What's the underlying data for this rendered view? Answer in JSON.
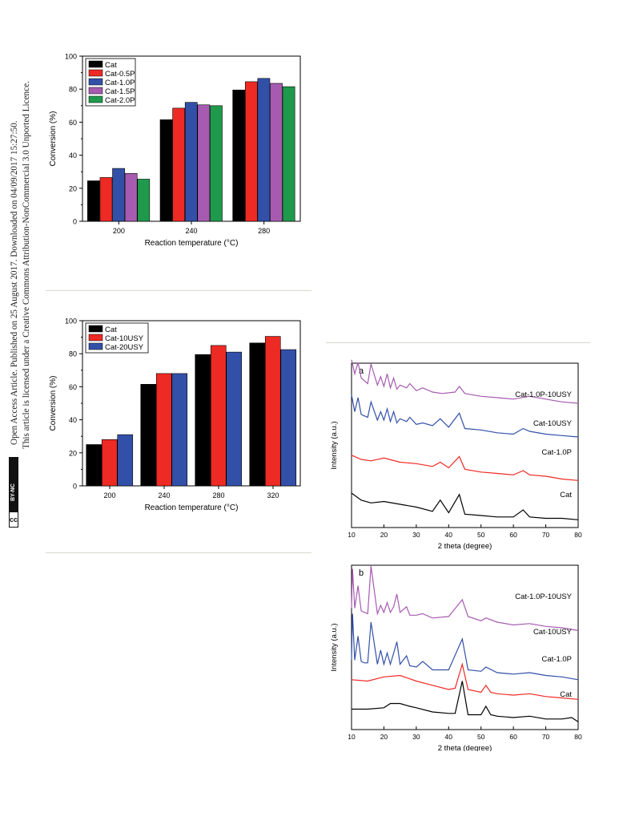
{
  "sidebar": {
    "line1": "Open Access Article. Published on 25 August 2017. Downloaded on 04/09/2017 15:27:50.",
    "line2": "This article is licensed under a Creative Commons Attribution-NonCommercial 3.0 Unported Licence.",
    "badge_cc": "cc",
    "badge_label": "BY-NC"
  },
  "colors": {
    "black": "#000000",
    "red": "#ee2a24",
    "blue": "#3350a8",
    "purple": "#a65bb0",
    "green": "#1f9a4c",
    "rule": "#d9d8cf"
  },
  "chart_data": [
    {
      "id": "phosphorus",
      "type": "bar",
      "title": "",
      "xlabel": "Reaction temperature (°C)",
      "ylabel": "Conversion (%)",
      "categories": [
        "200",
        "240",
        "280"
      ],
      "ylim": [
        0,
        100
      ],
      "yticks": [
        0,
        20,
        40,
        60,
        80,
        100
      ],
      "legend": "top-left",
      "series": [
        {
          "name": "Cat",
          "color": "#000000",
          "values": [
            24.5,
            61.5,
            79.5
          ]
        },
        {
          "name": "Cat-0.5P",
          "color": "#ee2a24",
          "values": [
            26.5,
            68.5,
            84.5
          ]
        },
        {
          "name": "Cat-1.0P",
          "color": "#3350a8",
          "values": [
            32,
            72,
            86.5
          ]
        },
        {
          "name": "Cat-1.5P",
          "color": "#a65bb0",
          "values": [
            29,
            70.5,
            83.5
          ]
        },
        {
          "name": "Cat-2.0P",
          "color": "#1f9a4c",
          "values": [
            25.5,
            70,
            81.5
          ]
        }
      ]
    },
    {
      "id": "usy",
      "type": "bar",
      "title": "",
      "xlabel": "Reaction temperature (°C)",
      "ylabel": "Conversion (%)",
      "categories": [
        "200",
        "240",
        "280",
        "320"
      ],
      "ylim": [
        0,
        100
      ],
      "yticks": [
        0,
        20,
        40,
        60,
        80,
        100
      ],
      "legend": "top-left",
      "series": [
        {
          "name": "Cat",
          "color": "#000000",
          "values": [
            25,
            61.5,
            79.5,
            86.5
          ]
        },
        {
          "name": "Cat-10USY",
          "color": "#ee2a24",
          "values": [
            28,
            68,
            85,
            90.5
          ]
        },
        {
          "name": "Cat-20USY",
          "color": "#3350a8",
          "values": [
            31,
            68,
            81,
            82.5
          ]
        }
      ]
    },
    {
      "id": "xrd-a",
      "type": "line",
      "panel_label": "a",
      "xlabel": "2 theta (degree)",
      "ylabel": "Intensity (a.u.)",
      "xlim": [
        10,
        80
      ],
      "xticks": [
        10,
        20,
        30,
        40,
        50,
        60,
        70,
        80
      ],
      "yticks_shown": false,
      "series": [
        {
          "name": "Cat-1.0P-10USY",
          "color": "#a65bb0",
          "x": [
            10,
            11,
            12,
            13,
            14,
            15,
            16,
            18,
            19,
            20,
            21,
            22,
            23,
            24,
            25,
            27,
            28,
            30,
            32,
            35,
            38,
            42,
            43.3,
            45,
            50,
            55,
            60,
            65,
            70,
            75,
            80
          ],
          "y": [
            1.15,
            1.05,
            1.13,
            1.02,
            1.0,
            0.98,
            1.12,
            0.97,
            1.03,
            0.96,
            1.05,
            0.95,
            1.02,
            0.94,
            0.97,
            0.95,
            0.98,
            0.93,
            0.95,
            0.92,
            0.91,
            0.92,
            0.96,
            0.91,
            0.89,
            0.88,
            0.87,
            0.89,
            0.87,
            0.85,
            0.84
          ]
        },
        {
          "name": "Cat-10USY",
          "color": "#3350a8",
          "x": [
            10,
            11,
            12,
            13,
            14,
            15,
            16,
            18,
            19,
            20,
            21,
            22,
            23,
            24,
            25,
            27,
            28,
            30,
            32,
            35,
            37.4,
            40,
            43.3,
            45,
            50,
            55,
            60,
            63,
            65,
            70,
            75,
            80
          ],
          "y": [
            0.9,
            0.78,
            0.88,
            0.76,
            0.75,
            0.74,
            0.85,
            0.72,
            0.78,
            0.72,
            0.8,
            0.71,
            0.78,
            0.7,
            0.73,
            0.71,
            0.74,
            0.69,
            0.7,
            0.68,
            0.73,
            0.67,
            0.77,
            0.66,
            0.65,
            0.63,
            0.62,
            0.66,
            0.64,
            0.62,
            0.61,
            0.6
          ]
        },
        {
          "name": "Cat-1.0P",
          "color": "#ee2a24",
          "x": [
            10,
            13,
            16,
            20,
            25,
            30,
            35,
            37.4,
            40,
            43.3,
            45,
            50,
            55,
            60,
            63,
            65,
            70,
            75,
            80
          ],
          "y": [
            0.47,
            0.44,
            0.43,
            0.45,
            0.42,
            0.41,
            0.39,
            0.42,
            0.38,
            0.46,
            0.37,
            0.35,
            0.34,
            0.33,
            0.36,
            0.33,
            0.32,
            0.3,
            0.29
          ]
        },
        {
          "name": "Cat",
          "color": "#000000",
          "x": [
            10,
            13,
            16,
            20,
            25,
            30,
            35,
            37.4,
            40,
            43.3,
            45,
            50,
            55,
            60,
            63,
            65,
            70,
            75,
            80
          ],
          "y": [
            0.2,
            0.15,
            0.13,
            0.14,
            0.12,
            0.1,
            0.07,
            0.15,
            0.06,
            0.19,
            0.05,
            0.04,
            0.03,
            0.03,
            0.08,
            0.03,
            0.02,
            0.02,
            0.01
          ]
        }
      ]
    },
    {
      "id": "xrd-b",
      "type": "line",
      "panel_label": "b",
      "xlabel": "2 theta (degree)",
      "ylabel": "Intensity (a.u.)",
      "xlim": [
        10,
        80
      ],
      "xticks": [
        10,
        20,
        30,
        40,
        50,
        60,
        70,
        80
      ],
      "yticks_shown": false,
      "series": [
        {
          "name": "Cat-1.0P-10USY",
          "color": "#a65bb0",
          "x": [
            10,
            10.3,
            11,
            12,
            13,
            14,
            15,
            16,
            18,
            19,
            20,
            21,
            22,
            23,
            24,
            25,
            27,
            28,
            30,
            32,
            35,
            40,
            44.2,
            46,
            50,
            51.5,
            55,
            60,
            65,
            70,
            75,
            80
          ],
          "y": [
            0.82,
            1.1,
            0.82,
            0.98,
            0.8,
            0.79,
            0.78,
            1.12,
            0.78,
            0.84,
            0.79,
            0.86,
            0.79,
            0.83,
            0.92,
            0.79,
            0.83,
            0.77,
            0.77,
            0.78,
            0.75,
            0.76,
            0.88,
            0.76,
            0.73,
            0.75,
            0.72,
            0.7,
            0.71,
            0.69,
            0.68,
            0.66
          ]
        },
        {
          "name": "Cat-10USY",
          "color": "#3350a8",
          "x": [
            10,
            10.3,
            11,
            12,
            13,
            14,
            15,
            16,
            18,
            19,
            20,
            21,
            22,
            23,
            24,
            25,
            27,
            28,
            30,
            32,
            35,
            40,
            44.2,
            46,
            50,
            51.5,
            55,
            60,
            65,
            70,
            75,
            80
          ],
          "y": [
            0.45,
            0.78,
            0.45,
            0.62,
            0.44,
            0.43,
            0.43,
            0.72,
            0.42,
            0.52,
            0.42,
            0.5,
            0.42,
            0.5,
            0.58,
            0.42,
            0.48,
            0.41,
            0.4,
            0.44,
            0.38,
            0.38,
            0.6,
            0.38,
            0.37,
            0.4,
            0.36,
            0.35,
            0.36,
            0.34,
            0.33,
            0.31
          ]
        },
        {
          "name": "Cat-1.0P",
          "color": "#ee2a24",
          "x": [
            10,
            15,
            20,
            25,
            30,
            35,
            40,
            42,
            44.2,
            46,
            50,
            51.5,
            53,
            55,
            60,
            65,
            70,
            75,
            80
          ],
          "y": [
            0.31,
            0.3,
            0.33,
            0.34,
            0.3,
            0.27,
            0.24,
            0.25,
            0.42,
            0.24,
            0.22,
            0.27,
            0.22,
            0.21,
            0.2,
            0.21,
            0.19,
            0.18,
            0.17
          ]
        },
        {
          "name": "Cat",
          "color": "#000000",
          "x": [
            10,
            15,
            20,
            22,
            25,
            28,
            30,
            35,
            40,
            42,
            44.2,
            46,
            50,
            51.5,
            53,
            55,
            60,
            65,
            70,
            75,
            78,
            80
          ],
          "y": [
            0.1,
            0.1,
            0.11,
            0.14,
            0.14,
            0.12,
            0.11,
            0.08,
            0.07,
            0.07,
            0.3,
            0.06,
            0.06,
            0.12,
            0.06,
            0.05,
            0.04,
            0.05,
            0.03,
            0.03,
            0.04,
            0.01
          ]
        }
      ]
    }
  ]
}
